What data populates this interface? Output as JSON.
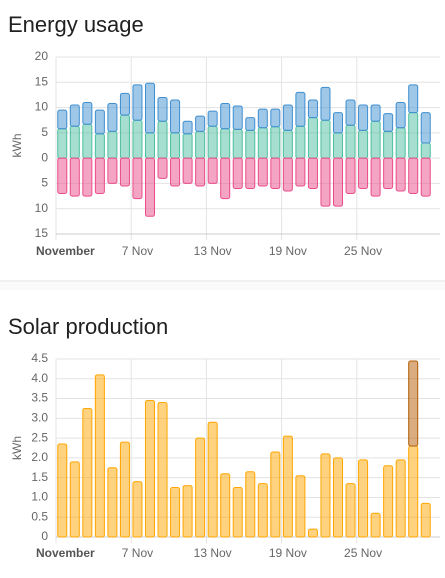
{
  "chart_data": [
    {
      "type": "bar",
      "title": "Energy usage",
      "y_label": "kWh",
      "categories": [
        "November",
        null,
        null,
        null,
        null,
        null,
        "7 Nov",
        null,
        null,
        null,
        null,
        null,
        "13 Nov",
        null,
        null,
        null,
        null,
        null,
        "19 Nov",
        null,
        null,
        null,
        null,
        null,
        "25 Nov",
        null,
        null,
        null,
        null,
        null
      ],
      "series": [
        {
          "color": "#4dbf9f",
          "values": [
            5.8,
            6.3,
            6.7,
            4.8,
            5.3,
            8.5,
            7.5,
            5,
            7.3,
            5,
            4.8,
            5.3,
            6.3,
            5.8,
            5.7,
            5.5,
            6,
            6.2,
            5.5,
            6.3,
            8,
            7.5,
            5,
            6.5,
            5.5,
            7.3,
            5.3,
            6,
            9,
            3
          ]
        },
        {
          "color": "#3f8fd0",
          "values": [
            3.7,
            4.2,
            4.3,
            4.7,
            5.5,
            4.3,
            7,
            9.8,
            4.7,
            6.5,
            2.5,
            3,
            3,
            5,
            4.6,
            2.5,
            3.7,
            3.5,
            5,
            6.7,
            3.5,
            6.5,
            4,
            5,
            5,
            3.2,
            3.5,
            5,
            5.5,
            6
          ]
        },
        {
          "color": "#ea4c89",
          "values": [
            -7,
            -7.5,
            -7.5,
            -7,
            -5,
            -5.5,
            -8,
            -11.5,
            -4,
            -5.5,
            -5,
            -5.5,
            -5,
            -8,
            -6,
            -6,
            -5.5,
            -6,
            -6.5,
            -5.5,
            -6,
            -9.5,
            -9.5,
            -7,
            -6,
            -7.5,
            -6,
            -6.5,
            -7,
            -7.5
          ]
        }
      ],
      "ylim": [
        -15,
        20
      ],
      "yticks": [
        {
          "value": -15,
          "label": "15"
        },
        {
          "value": -10,
          "label": "10"
        },
        {
          "value": -5,
          "label": "5"
        },
        0,
        5,
        10,
        15,
        20
      ],
      "grid": true
    },
    {
      "type": "bar",
      "title": "Solar production",
      "y_label": "kWh",
      "categories": [
        "November",
        null,
        null,
        null,
        null,
        null,
        "7 Nov",
        null,
        null,
        null,
        null,
        null,
        "13 Nov",
        null,
        null,
        null,
        null,
        null,
        "19 Nov",
        null,
        null,
        null,
        null,
        null,
        "25 Nov",
        null,
        null,
        null,
        null,
        null
      ],
      "series": [
        {
          "color": "#ffa600",
          "values": [
            2.35,
            1.9,
            3.25,
            4.1,
            1.75,
            2.4,
            1.4,
            3.45,
            3.4,
            1.25,
            1.3,
            2.5,
            2.9,
            1.6,
            1.25,
            1.65,
            1.35,
            2.15,
            2.55,
            1.55,
            0.2,
            2.1,
            2.0,
            1.35,
            1.95,
            0.6,
            1.8,
            1.95,
            2.3,
            0.85
          ]
        },
        {
          "color": "#b35c00",
          "values": [
            0,
            0,
            0,
            0,
            0,
            0,
            0,
            0,
            0,
            0,
            0,
            0,
            0,
            0,
            0,
            0,
            0,
            0,
            0,
            0,
            0,
            0,
            0,
            0,
            0,
            0,
            0,
            0,
            2.15,
            0
          ]
        }
      ],
      "ylim": [
        0,
        4.5
      ],
      "yticks": [
        0,
        0.5,
        {
          "value": 1,
          "label": "1.0"
        },
        1.5,
        {
          "value": 2,
          "label": "2.0"
        },
        2.5,
        {
          "value": 3,
          "label": "3.0"
        },
        3.5,
        {
          "value": 4,
          "label": "4.0"
        },
        4.5
      ],
      "grid": true
    }
  ]
}
